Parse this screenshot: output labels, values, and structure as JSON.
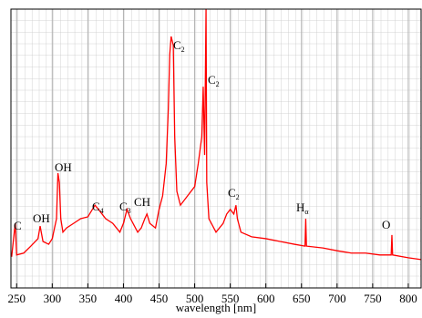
{
  "chart_data": {
    "type": "line",
    "x_label": "wavelength [nm]",
    "color": "#ff0000",
    "grid": true,
    "xlim": [
      242,
      818
    ],
    "ylim": [
      0,
      6
    ],
    "xticks": [
      250,
      300,
      350,
      400,
      450,
      500,
      550,
      600,
      650,
      700,
      750,
      800
    ],
    "x": [
      243,
      248,
      250,
      260,
      270,
      280,
      283,
      287,
      295,
      300,
      306,
      308,
      310,
      312,
      315,
      320,
      330,
      340,
      350,
      360,
      365,
      375,
      385,
      395,
      400,
      405,
      410,
      420,
      425,
      430,
      433,
      437,
      445,
      450,
      455,
      460,
      463,
      465,
      467,
      470,
      472,
      475,
      480,
      490,
      500,
      505,
      510,
      512,
      514,
      516,
      517,
      520,
      530,
      540,
      545,
      550,
      555,
      558,
      560,
      565,
      580,
      600,
      620,
      640,
      655,
      656,
      657,
      680,
      700,
      720,
      740,
      760,
      776,
      777,
      778,
      800,
      818
    ],
    "values": [
      0.67,
      1.39,
      0.71,
      0.75,
      0.9,
      1.06,
      1.33,
      1.0,
      0.94,
      1.06,
      1.49,
      2.47,
      2.27,
      1.49,
      1.2,
      1.29,
      1.39,
      1.49,
      1.53,
      1.78,
      1.69,
      1.49,
      1.39,
      1.2,
      1.39,
      1.69,
      1.49,
      1.2,
      1.29,
      1.49,
      1.59,
      1.39,
      1.29,
      1.69,
      1.98,
      2.67,
      3.84,
      5.02,
      5.41,
      5.22,
      3.25,
      2.08,
      1.78,
      1.98,
      2.18,
      2.67,
      3.25,
      4.33,
      2.86,
      6.0,
      2.27,
      1.49,
      1.2,
      1.39,
      1.59,
      1.69,
      1.59,
      1.78,
      1.49,
      1.2,
      1.1,
      1.06,
      1.0,
      0.94,
      0.9,
      1.49,
      0.9,
      0.86,
      0.8,
      0.75,
      0.75,
      0.71,
      0.71,
      1.14,
      0.71,
      0.65,
      0.61
    ],
    "annotations": [
      {
        "text": "C"
      },
      {
        "text": "OH"
      },
      {
        "text": "OH"
      },
      {
        "text": "C",
        "sub": "4"
      },
      {
        "text": "C",
        "sub": "3"
      },
      {
        "text": "CH"
      },
      {
        "text": "C",
        "sub": "2"
      },
      {
        "text": "C",
        "sub": "2"
      },
      {
        "text": "C",
        "sub": "2"
      },
      {
        "text": "H",
        "sub": "α"
      },
      {
        "text": "O"
      }
    ]
  }
}
